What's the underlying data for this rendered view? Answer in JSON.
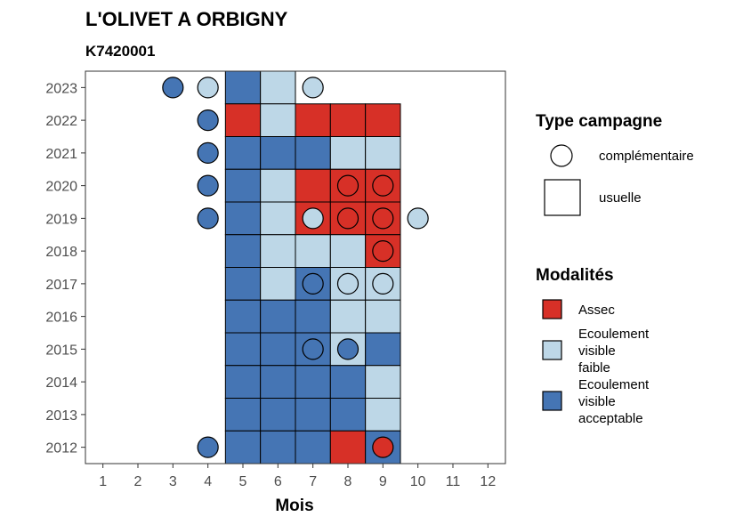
{
  "chart_data": {
    "type": "heatmap",
    "title": "L'OLIVET A ORBIGNY",
    "subtitle": "K7420001",
    "xlabel": "Mois",
    "ylabel": "",
    "x_ticks": [
      1,
      2,
      3,
      4,
      5,
      6,
      7,
      8,
      9,
      10,
      11,
      12
    ],
    "y_ticks": [
      2012,
      2013,
      2014,
      2015,
      2016,
      2017,
      2018,
      2019,
      2020,
      2021,
      2022,
      2023
    ],
    "xlim": [
      0.5,
      12.5
    ],
    "ylim": [
      2011.5,
      2023.5
    ],
    "grid": false,
    "colors": {
      "Assec": "#d73027",
      "Ecoulement visible faible": "#bdd7e7",
      "Ecoulement visible acceptable": "#4575b4"
    },
    "usual_cells": [
      {
        "year": 2023,
        "month": 5,
        "modalite": "Ecoulement visible acceptable"
      },
      {
        "year": 2023,
        "month": 6,
        "modalite": "Ecoulement visible faible"
      },
      {
        "year": 2022,
        "month": 5,
        "modalite": "Assec"
      },
      {
        "year": 2022,
        "month": 6,
        "modalite": "Ecoulement visible faible"
      },
      {
        "year": 2022,
        "month": 7,
        "modalite": "Assec"
      },
      {
        "year": 2022,
        "month": 8,
        "modalite": "Assec"
      },
      {
        "year": 2022,
        "month": 9,
        "modalite": "Assec"
      },
      {
        "year": 2021,
        "month": 5,
        "modalite": "Ecoulement visible acceptable"
      },
      {
        "year": 2021,
        "month": 6,
        "modalite": "Ecoulement visible acceptable"
      },
      {
        "year": 2021,
        "month": 7,
        "modalite": "Ecoulement visible acceptable"
      },
      {
        "year": 2021,
        "month": 8,
        "modalite": "Ecoulement visible faible"
      },
      {
        "year": 2021,
        "month": 9,
        "modalite": "Ecoulement visible faible"
      },
      {
        "year": 2020,
        "month": 5,
        "modalite": "Ecoulement visible acceptable"
      },
      {
        "year": 2020,
        "month": 6,
        "modalite": "Ecoulement visible faible"
      },
      {
        "year": 2020,
        "month": 7,
        "modalite": "Assec"
      },
      {
        "year": 2020,
        "month": 8,
        "modalite": "Assec"
      },
      {
        "year": 2020,
        "month": 9,
        "modalite": "Assec"
      },
      {
        "year": 2019,
        "month": 5,
        "modalite": "Ecoulement visible acceptable"
      },
      {
        "year": 2019,
        "month": 6,
        "modalite": "Ecoulement visible faible"
      },
      {
        "year": 2019,
        "month": 7,
        "modalite": "Assec"
      },
      {
        "year": 2019,
        "month": 8,
        "modalite": "Assec"
      },
      {
        "year": 2019,
        "month": 9,
        "modalite": "Assec"
      },
      {
        "year": 2018,
        "month": 5,
        "modalite": "Ecoulement visible acceptable"
      },
      {
        "year": 2018,
        "month": 6,
        "modalite": "Ecoulement visible faible"
      },
      {
        "year": 2018,
        "month": 7,
        "modalite": "Ecoulement visible faible"
      },
      {
        "year": 2018,
        "month": 8,
        "modalite": "Ecoulement visible faible"
      },
      {
        "year": 2018,
        "month": 9,
        "modalite": "Assec"
      },
      {
        "year": 2017,
        "month": 5,
        "modalite": "Ecoulement visible acceptable"
      },
      {
        "year": 2017,
        "month": 6,
        "modalite": "Ecoulement visible faible"
      },
      {
        "year": 2017,
        "month": 7,
        "modalite": "Ecoulement visible acceptable"
      },
      {
        "year": 2017,
        "month": 8,
        "modalite": "Ecoulement visible faible"
      },
      {
        "year": 2017,
        "month": 9,
        "modalite": "Ecoulement visible faible"
      },
      {
        "year": 2016,
        "month": 5,
        "modalite": "Ecoulement visible acceptable"
      },
      {
        "year": 2016,
        "month": 6,
        "modalite": "Ecoulement visible acceptable"
      },
      {
        "year": 2016,
        "month": 7,
        "modalite": "Ecoulement visible acceptable"
      },
      {
        "year": 2016,
        "month": 8,
        "modalite": "Ecoulement visible faible"
      },
      {
        "year": 2016,
        "month": 9,
        "modalite": "Ecoulement visible faible"
      },
      {
        "year": 2015,
        "month": 5,
        "modalite": "Ecoulement visible acceptable"
      },
      {
        "year": 2015,
        "month": 6,
        "modalite": "Ecoulement visible acceptable"
      },
      {
        "year": 2015,
        "month": 7,
        "modalite": "Ecoulement visible acceptable"
      },
      {
        "year": 2015,
        "month": 8,
        "modalite": "Ecoulement visible faible"
      },
      {
        "year": 2015,
        "month": 9,
        "modalite": "Ecoulement visible acceptable"
      },
      {
        "year": 2014,
        "month": 5,
        "modalite": "Ecoulement visible acceptable"
      },
      {
        "year": 2014,
        "month": 6,
        "modalite": "Ecoulement visible acceptable"
      },
      {
        "year": 2014,
        "month": 7,
        "modalite": "Ecoulement visible acceptable"
      },
      {
        "year": 2014,
        "month": 8,
        "modalite": "Ecoulement visible acceptable"
      },
      {
        "year": 2014,
        "month": 9,
        "modalite": "Ecoulement visible faible"
      },
      {
        "year": 2013,
        "month": 5,
        "modalite": "Ecoulement visible acceptable"
      },
      {
        "year": 2013,
        "month": 6,
        "modalite": "Ecoulement visible acceptable"
      },
      {
        "year": 2013,
        "month": 7,
        "modalite": "Ecoulement visible acceptable"
      },
      {
        "year": 2013,
        "month": 8,
        "modalite": "Ecoulement visible acceptable"
      },
      {
        "year": 2013,
        "month": 9,
        "modalite": "Ecoulement visible faible"
      },
      {
        "year": 2012,
        "month": 5,
        "modalite": "Ecoulement visible acceptable"
      },
      {
        "year": 2012,
        "month": 6,
        "modalite": "Ecoulement visible acceptable"
      },
      {
        "year": 2012,
        "month": 7,
        "modalite": "Ecoulement visible acceptable"
      },
      {
        "year": 2012,
        "month": 8,
        "modalite": "Assec"
      },
      {
        "year": 2012,
        "month": 9,
        "modalite": "Ecoulement visible acceptable"
      }
    ],
    "complementary_points": [
      {
        "year": 2023,
        "month": 3,
        "modalite": "Ecoulement visible acceptable"
      },
      {
        "year": 2023,
        "month": 4,
        "modalite": "Ecoulement visible faible"
      },
      {
        "year": 2023,
        "month": 7,
        "modalite": "Ecoulement visible faible"
      },
      {
        "year": 2022,
        "month": 4,
        "modalite": "Ecoulement visible acceptable"
      },
      {
        "year": 2021,
        "month": 4,
        "modalite": "Ecoulement visible acceptable"
      },
      {
        "year": 2020,
        "month": 4,
        "modalite": "Ecoulement visible acceptable"
      },
      {
        "year": 2020,
        "month": 8,
        "modalite": "Assec"
      },
      {
        "year": 2020,
        "month": 9,
        "modalite": "Assec"
      },
      {
        "year": 2019,
        "month": 4,
        "modalite": "Ecoulement visible acceptable"
      },
      {
        "year": 2019,
        "month": 7,
        "modalite": "Ecoulement visible faible"
      },
      {
        "year": 2019,
        "month": 8,
        "modalite": "Assec"
      },
      {
        "year": 2019,
        "month": 9,
        "modalite": "Assec"
      },
      {
        "year": 2019,
        "month": 10,
        "modalite": "Ecoulement visible faible"
      },
      {
        "year": 2018,
        "month": 9,
        "modalite": "Assec"
      },
      {
        "year": 2017,
        "month": 7,
        "modalite": "Ecoulement visible acceptable"
      },
      {
        "year": 2017,
        "month": 8,
        "modalite": "Ecoulement visible faible"
      },
      {
        "year": 2017,
        "month": 9,
        "modalite": "Ecoulement visible faible"
      },
      {
        "year": 2015,
        "month": 7,
        "modalite": "Ecoulement visible acceptable"
      },
      {
        "year": 2015,
        "month": 8,
        "modalite": "Ecoulement visible acceptable"
      },
      {
        "year": 2012,
        "month": 4,
        "modalite": "Ecoulement visible acceptable"
      },
      {
        "year": 2012,
        "month": 9,
        "modalite": "Assec"
      }
    ]
  },
  "legend": {
    "type_title": "Type campagne",
    "type_items": [
      {
        "shape": "circle",
        "label": "complémentaire"
      },
      {
        "shape": "square",
        "label": "usuelle"
      }
    ],
    "modal_title": "Modalités",
    "modal_items": [
      {
        "key": "Assec",
        "lines": [
          "Assec"
        ]
      },
      {
        "key": "Ecoulement visible faible",
        "lines": [
          "Ecoulement",
          "visible",
          "faible"
        ]
      },
      {
        "key": "Ecoulement visible acceptable",
        "lines": [
          "Ecoulement",
          "visible",
          "acceptable"
        ]
      }
    ]
  }
}
